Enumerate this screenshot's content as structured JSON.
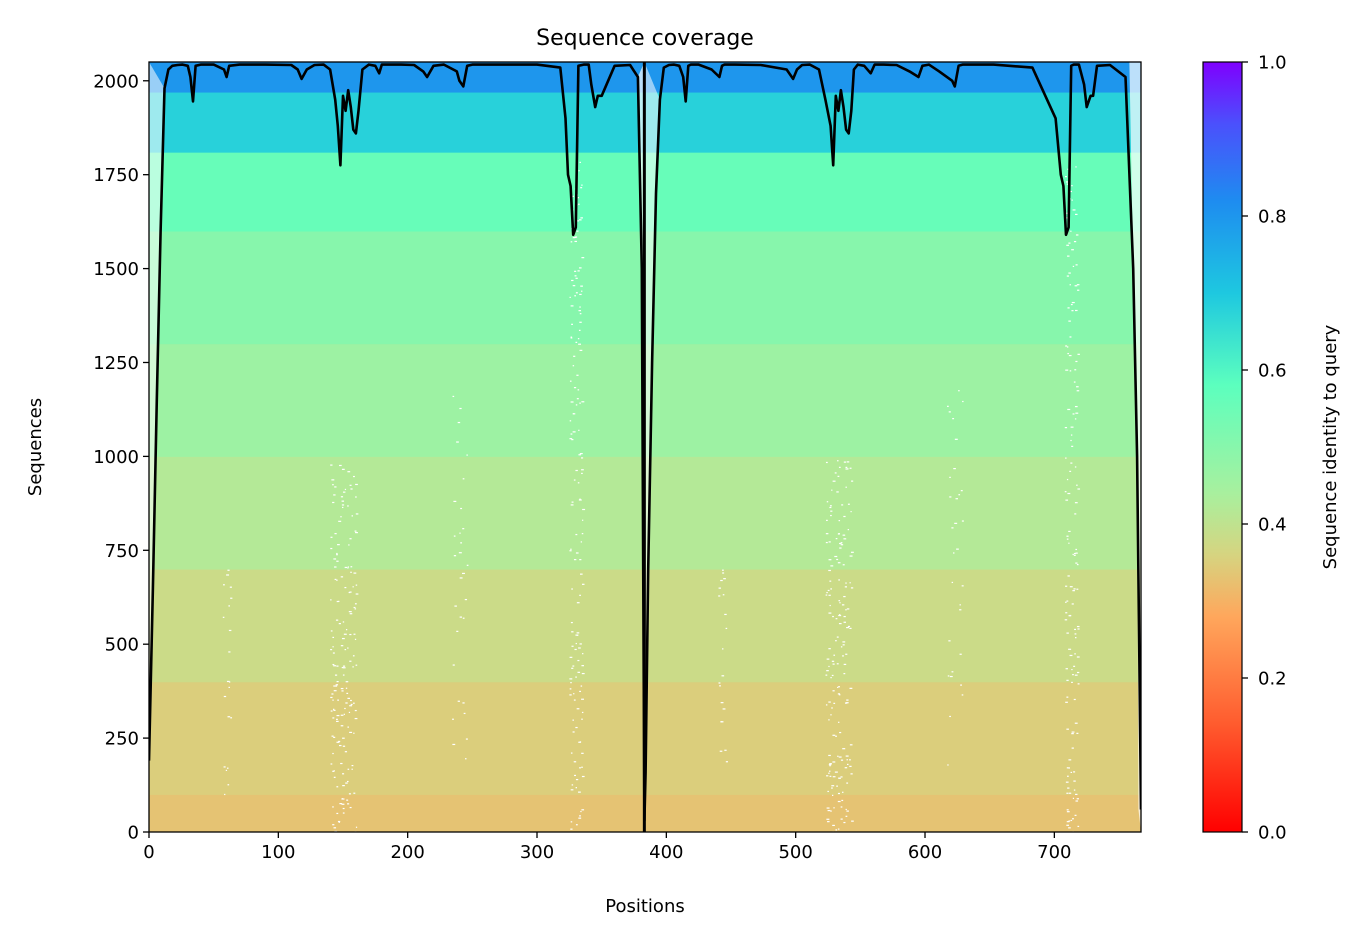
{
  "chart_data": {
    "type": "heatmap",
    "title": "Sequence coverage",
    "xlabel": "Positions",
    "ylabel": "Sequences",
    "xlim": [
      0,
      767
    ],
    "ylim": [
      0,
      2050
    ],
    "x_ticks": [
      "0",
      "100",
      "200",
      "300",
      "400",
      "500",
      "600",
      "700"
    ],
    "y_ticks": [
      "0",
      "250",
      "500",
      "750",
      "1000",
      "1250",
      "1500",
      "1750",
      "2000"
    ],
    "segment_boundary": 383,
    "colorbar": {
      "label": "Sequence identity to query",
      "range": [
        0.0,
        1.0
      ],
      "ticks": [
        "0.0",
        "0.2",
        "0.4",
        "0.6",
        "0.8",
        "1.0"
      ],
      "colormap": "rainbow_r"
    },
    "identity_bands": [
      {
        "from": 0,
        "to": 100,
        "identity": 0.33
      },
      {
        "from": 100,
        "to": 400,
        "identity": 0.35
      },
      {
        "from": 400,
        "to": 700,
        "identity": 0.38
      },
      {
        "from": 700,
        "to": 1000,
        "identity": 0.42
      },
      {
        "from": 1000,
        "to": 1300,
        "identity": 0.46
      },
      {
        "from": 1300,
        "to": 1600,
        "identity": 0.5
      },
      {
        "from": 1600,
        "to": 1810,
        "identity": 0.56
      },
      {
        "from": 1810,
        "to": 1970,
        "identity": 0.68
      },
      {
        "from": 1970,
        "to": 2050,
        "identity": 0.8
      }
    ],
    "coverage_series": {
      "name": "",
      "color": "#000000",
      "x": [
        0,
        3,
        6,
        9,
        12,
        15,
        18,
        22,
        26,
        30,
        32,
        34,
        36,
        40,
        50,
        58,
        60,
        62,
        70,
        90,
        110,
        115,
        118,
        122,
        128,
        135,
        140,
        144,
        146,
        148,
        150,
        152,
        154,
        156,
        158,
        160,
        162,
        165,
        170,
        175,
        178,
        180,
        185,
        195,
        205,
        212,
        215,
        220,
        228,
        238,
        240,
        243,
        246,
        250,
        270,
        300,
        318,
        322,
        324,
        326,
        328,
        330,
        332,
        336,
        340,
        342,
        345,
        347,
        350,
        360,
        372,
        378,
        381,
        383,
        384,
        386,
        389,
        392,
        395,
        398,
        402,
        406,
        410,
        413,
        415,
        417,
        419,
        421,
        425,
        435,
        441,
        443,
        445,
        453,
        473,
        493,
        498,
        501,
        505,
        511,
        518,
        523,
        527,
        529,
        531,
        533,
        535,
        537,
        539,
        541,
        543,
        545,
        548,
        553,
        558,
        561,
        563,
        568,
        578,
        588,
        595,
        598,
        603,
        611,
        621,
        623,
        626,
        629,
        633,
        653,
        683,
        701,
        705,
        707,
        709,
        711,
        713,
        715,
        719,
        723,
        725,
        728,
        730,
        733,
        743,
        755,
        761,
        764,
        767
      ],
      "y": [
        190,
        650,
        1150,
        1600,
        1980,
        2030,
        2040,
        2042,
        2043,
        2040,
        2010,
        1945,
        2040,
        2043,
        2043,
        2030,
        2010,
        2040,
        2043,
        2043,
        2042,
        2030,
        2005,
        2030,
        2042,
        2043,
        2030,
        1950,
        1880,
        1775,
        1960,
        1920,
        1975,
        1930,
        1870,
        1860,
        1920,
        2030,
        2043,
        2040,
        2020,
        2043,
        2043,
        2043,
        2042,
        2025,
        2010,
        2040,
        2043,
        2025,
        2000,
        1985,
        2040,
        2043,
        2043,
        2043,
        2035,
        1900,
        1750,
        1720,
        1590,
        1610,
        2040,
        2043,
        2043,
        1990,
        1930,
        1960,
        1960,
        2040,
        2042,
        2010,
        1500,
        30,
        160,
        700,
        1250,
        1700,
        1950,
        2035,
        2042,
        2043,
        2040,
        2010,
        1945,
        2040,
        2043,
        2043,
        2043,
        2030,
        2010,
        2040,
        2043,
        2043,
        2042,
        2030,
        2005,
        2030,
        2042,
        2043,
        2030,
        1950,
        1880,
        1775,
        1960,
        1920,
        1975,
        1930,
        1870,
        1860,
        1920,
        2030,
        2043,
        2040,
        2020,
        2043,
        2043,
        2043,
        2042,
        2025,
        2010,
        2040,
        2043,
        2025,
        2000,
        1985,
        2040,
        2043,
        2043,
        2043,
        2035,
        1900,
        1750,
        1720,
        1590,
        1610,
        2040,
        2043,
        2043,
        1990,
        1930,
        1960,
        1960,
        2040,
        2042,
        2010,
        1500,
        1000,
        60
      ]
    }
  }
}
